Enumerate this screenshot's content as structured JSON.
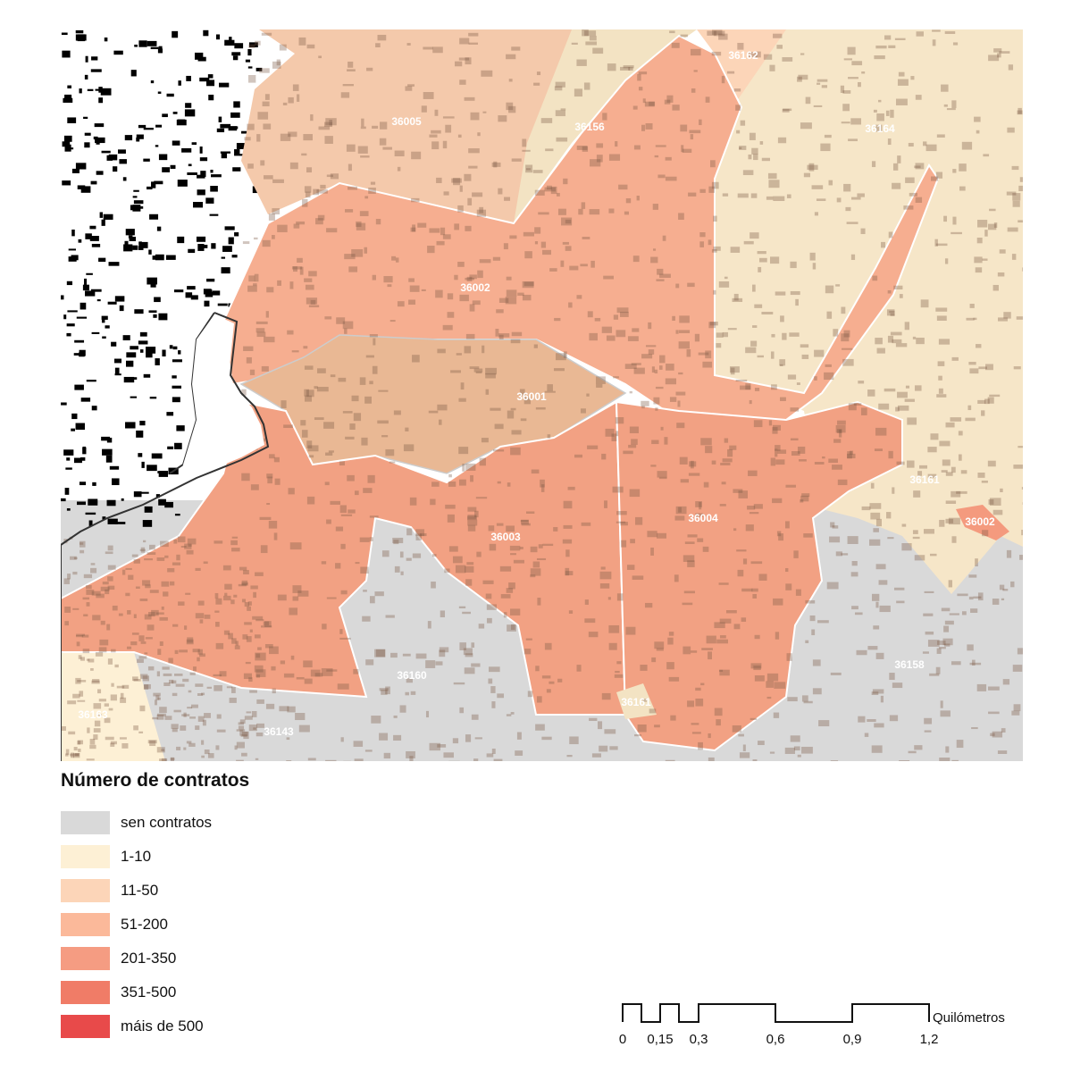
{
  "map": {
    "zone_labels": [
      "36005",
      "36156",
      "36162",
      "36164",
      "36002",
      "36001",
      "36003",
      "36004",
      "36161",
      "36002",
      "36160",
      "36163",
      "36143",
      "36158",
      "36161"
    ],
    "colors": {
      "sen_contratos": "#d9d9d9",
      "c1_10": "#fdf0d5",
      "c11_50": "#fcd5b8",
      "c51_200": "#fbb99a",
      "c201_350": "#f59c82",
      "c351_500": "#f07c67",
      "c500_plus": "#e84a4a",
      "buildings": "#7a5a45",
      "sea_outline": "#333333"
    }
  },
  "legend": {
    "title": "Número de contratos",
    "items": [
      {
        "label": "sen contratos",
        "color": "#d9d9d9"
      },
      {
        "label": "1-10",
        "color": "#fdf0d5"
      },
      {
        "label": "11-50",
        "color": "#fcd5b8"
      },
      {
        "label": "51-200",
        "color": "#fbb99a"
      },
      {
        "label": "201-350",
        "color": "#f59c82"
      },
      {
        "label": "351-500",
        "color": "#f07c67"
      },
      {
        "label": "máis de 500",
        "color": "#e84a4a"
      }
    ]
  },
  "scale_bar": {
    "unit": "Quilómetros",
    "ticks": [
      "0",
      "0,15",
      "0,3",
      "0,6",
      "0,9",
      "1,2"
    ]
  }
}
